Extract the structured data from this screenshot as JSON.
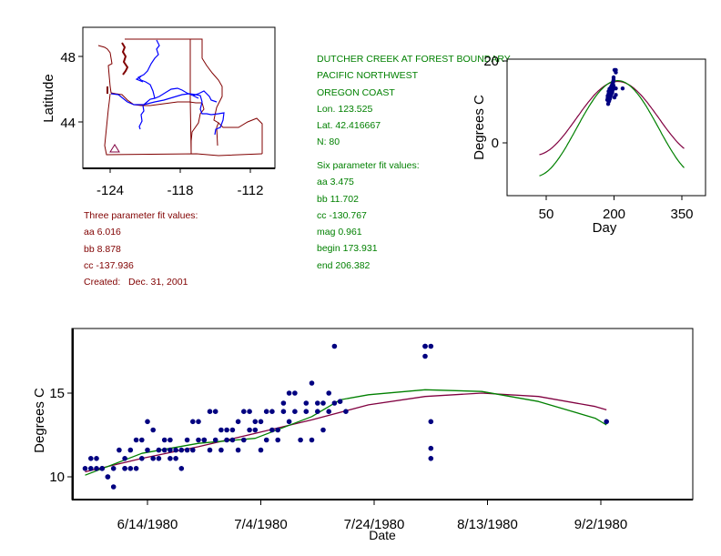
{
  "colors": {
    "boundary": "#800000",
    "river": "#0000ff",
    "site_marker": "#800040",
    "three_param_curve": "#800040",
    "six_param_curve": "#008000",
    "points": "#000080",
    "three_param_text": "#800000",
    "station_text": "#008000"
  },
  "map": {
    "ylabel": "Latitude",
    "x_ticks": [
      "-124",
      "-118",
      "-112"
    ],
    "y_ticks": [
      "48",
      "44"
    ],
    "site_marker": "triangle",
    "site_lon": -123.5,
    "site_lat": 42.4
  },
  "three_param": {
    "title": "Three parameter fit values:",
    "lines": [
      "aa 6.016",
      "bb 8.878",
      "cc -137.936"
    ],
    "created": "Created:   Dec. 31, 2001"
  },
  "station": {
    "name": "DUTCHER CREEK AT FOREST BOUNDARY",
    "region": "PACIFIC NORTHWEST",
    "subregion": "OREGON COAST",
    "lon": "Lon. 123.525",
    "lat": "Lat. 42.416667",
    "n": "N: 80"
  },
  "six_param": {
    "title": "Six parameter fit values:",
    "lines": [
      "aa 3.475",
      "bb 11.702",
      "cc -130.767",
      "mag 0.961",
      "begin 173.931",
      "end 206.382"
    ]
  },
  "chart_data": [
    {
      "type": "line",
      "title": "",
      "xlabel": "Day",
      "ylabel": "Degrees C",
      "xlim": [
        0,
        380
      ],
      "ylim": [
        -13,
        20
      ],
      "x_ticks": [
        50,
        200,
        350
      ],
      "y_ticks": [
        0,
        20
      ],
      "grid": false,
      "series": [
        {
          "name": "three_param_fit",
          "kind": "curve",
          "x_range": [
            35,
            355
          ],
          "aa": 6.016,
          "bb": 8.878,
          "cc": -137.936
        },
        {
          "name": "six_param_fit",
          "kind": "curve",
          "x_range": [
            35,
            355
          ],
          "aa": 3.475,
          "bb": 11.702,
          "cc": -130.767
        }
      ],
      "points": {
        "name": "observations",
        "x": [
          185,
          186,
          187,
          187,
          188,
          188,
          189,
          189,
          190,
          190,
          191,
          191,
          192,
          192,
          193,
          193,
          194,
          194,
          195,
          195,
          196,
          196,
          197,
          197,
          198,
          198,
          199,
          199,
          188,
          190,
          192,
          194,
          196,
          198,
          187,
          189,
          191,
          193,
          195,
          197,
          186,
          188,
          190,
          192,
          194,
          196,
          198,
          197,
          199,
          204,
          204,
          204,
          204,
          201,
          201,
          219
        ],
        "y": [
          10.5,
          11,
          10.8,
          11.5,
          11.2,
          12,
          11,
          12.3,
          11.8,
          12.5,
          12,
          13,
          12.2,
          13.3,
          12.5,
          13.5,
          12.8,
          13.8,
          13,
          14,
          13.3,
          14.2,
          13.5,
          14.5,
          13.8,
          15,
          14,
          15.5,
          10,
          10.6,
          11.2,
          11.8,
          12.6,
          13.2,
          9.5,
          10.2,
          10.8,
          11.6,
          12.2,
          12.9,
          11.5,
          12.6,
          13.2,
          12,
          13,
          12.3,
          14.8,
          14.2,
          16,
          17.8,
          17.2,
          13.3,
          11.7,
          11.1,
          17.8,
          13.3
        ]
      }
    },
    {
      "type": "scatter",
      "title": "",
      "xlabel": "Date",
      "ylabel": "Degrees C",
      "x_ticks": [
        "6/14/1980",
        "7/4/1980",
        "7/24/1980",
        "8/13/1980",
        "9/2/1980"
      ],
      "x_tick_days": [
        166,
        186,
        206,
        226,
        246
      ],
      "xlim_days": [
        153,
        262
      ],
      "ylim": [
        8.5,
        18.5
      ],
      "y_ticks": [
        10,
        15
      ],
      "grid": false,
      "points": {
        "x_day": [
          155,
          156,
          156,
          157,
          157,
          158,
          158,
          159,
          159,
          160,
          160,
          161,
          162,
          162,
          162,
          163,
          163,
          164,
          164,
          165,
          165,
          166,
          166,
          167,
          167,
          168,
          168,
          169,
          169,
          170,
          170,
          170,
          171,
          171,
          172,
          172,
          173,
          173,
          174,
          174,
          175,
          175,
          176,
          176,
          177,
          177,
          178,
          178,
          179,
          179,
          180,
          180,
          181,
          181,
          182,
          182,
          183,
          183,
          184,
          184,
          185,
          185,
          186,
          186,
          187,
          187,
          188,
          188,
          189,
          189,
          190,
          190,
          191,
          191,
          192,
          192,
          193,
          194,
          194,
          195,
          195,
          196,
          196,
          197,
          197,
          198,
          198,
          199,
          199,
          200,
          201,
          215,
          215,
          215,
          216,
          216,
          216,
          216,
          247
        ],
        "y": [
          10.5,
          10.5,
          11.1,
          11.1,
          10.5,
          10.5,
          10.5,
          10.0,
          10.0,
          10.5,
          9.4,
          11.6,
          11.1,
          10.5,
          10.5,
          11.6,
          10.5,
          12.2,
          10.5,
          12.2,
          11.1,
          13.3,
          11.6,
          12.8,
          11.1,
          11.6,
          11.1,
          12.2,
          11.6,
          12.2,
          11.6,
          11.1,
          11.6,
          11.1,
          11.6,
          10.5,
          12.2,
          11.6,
          13.3,
          11.6,
          13.3,
          12.2,
          12.2,
          12.2,
          13.9,
          11.6,
          13.9,
          12.2,
          12.8,
          11.6,
          12.8,
          12.2,
          12.8,
          12.2,
          13.3,
          11.6,
          13.9,
          12.2,
          13.9,
          12.8,
          12.8,
          13.3,
          13.3,
          11.6,
          13.9,
          12.2,
          13.9,
          12.8,
          12.8,
          12.2,
          13.9,
          14.4,
          15.0,
          13.3,
          15.0,
          13.9,
          12.2,
          13.9,
          14.4,
          15.6,
          12.2,
          14.4,
          13.9,
          14.4,
          12.8,
          15.0,
          13.9,
          14.4,
          17.8,
          14.5,
          13.9,
          17.8,
          17.8,
          17.2,
          13.3,
          11.7,
          11.1,
          17.8,
          13.3
        ],
        "note": "approximate values read from scatter; points near 6/12-7/15 plus outliers near 7/28 and one near 9/9"
      },
      "series": [
        {
          "name": "three_param_fit",
          "color_key": "three_param_curve",
          "x_day": [
            155,
            165,
            175,
            185,
            195,
            205,
            215,
            225,
            235,
            245,
            247
          ],
          "y": [
            10.3,
            11.1,
            11.8,
            12.6,
            13.4,
            14.3,
            14.8,
            15.0,
            14.8,
            14.2,
            14.0
          ]
        },
        {
          "name": "six_param_fit",
          "color_key": "six_param_curve",
          "x_day": [
            155,
            165,
            175,
            185,
            195,
            200,
            205,
            215,
            225,
            235,
            245,
            247
          ],
          "y": [
            10.1,
            11.4,
            12.0,
            12.3,
            13.6,
            14.6,
            14.9,
            15.2,
            15.1,
            14.5,
            13.5,
            13.1
          ]
        }
      ]
    }
  ]
}
